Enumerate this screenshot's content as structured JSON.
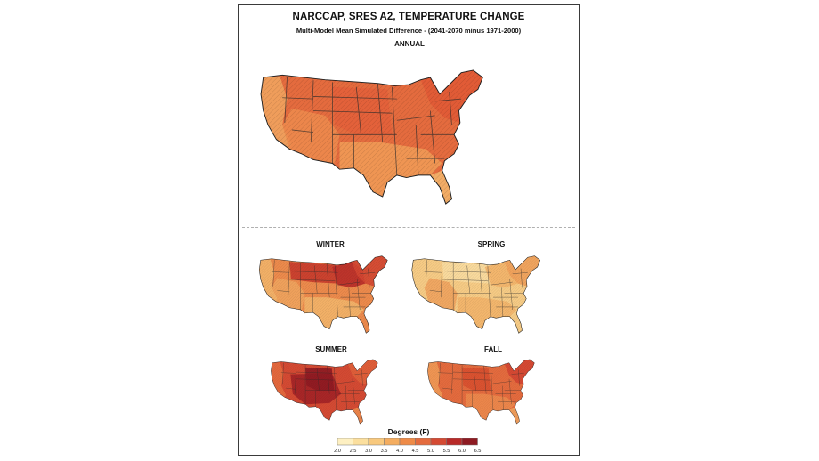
{
  "title": "NARCCAP, SRES A2, TEMPERATURE CHANGE",
  "subtitle": "Multi-Model Mean Simulated Difference - (2041-2070 minus 1971-2000)",
  "panels": [
    {
      "id": "annual",
      "label": "ANNUAL",
      "base": "#e46b3e",
      "regions": [
        {
          "region": "west-coast",
          "color": "#f0a35e"
        },
        {
          "region": "southwest",
          "color": "#ec8a4c"
        },
        {
          "region": "south",
          "color": "#ef9a55"
        },
        {
          "region": "northeast",
          "color": "#e05a35"
        },
        {
          "region": "great-plains",
          "color": "#e2603a"
        },
        {
          "region": "florida",
          "color": "#f3b46a"
        }
      ]
    },
    {
      "id": "winter",
      "label": "WINTER",
      "base": "#ec8a4c",
      "regions": [
        {
          "region": "northern-plains",
          "color": "#c83a2c"
        },
        {
          "region": "great-lakes",
          "color": "#b82a28"
        },
        {
          "region": "northeast",
          "color": "#d34632"
        },
        {
          "region": "southwest",
          "color": "#f0a35e"
        },
        {
          "region": "south",
          "color": "#f3b46a"
        },
        {
          "region": "west-coast",
          "color": "#f3b46a"
        }
      ]
    },
    {
      "id": "spring",
      "label": "SPRING",
      "base": "#f6cb85",
      "regions": [
        {
          "region": "southwest",
          "color": "#f0a35e"
        },
        {
          "region": "south",
          "color": "#f3b46a"
        },
        {
          "region": "northern-plains",
          "color": "#f9dca0"
        },
        {
          "region": "great-lakes",
          "color": "#f3b46a"
        },
        {
          "region": "northeast",
          "color": "#efa05a"
        }
      ]
    },
    {
      "id": "summer",
      "label": "SUMMER",
      "base": "#d44a33",
      "regions": [
        {
          "region": "central",
          "color": "#a32226"
        },
        {
          "region": "great-plains",
          "color": "#8e1b22"
        },
        {
          "region": "west-coast",
          "color": "#e46b3e"
        },
        {
          "region": "northeast",
          "color": "#e0603a"
        },
        {
          "region": "florida",
          "color": "#ec8a4c"
        }
      ]
    },
    {
      "id": "fall",
      "label": "FALL",
      "base": "#e46b3e",
      "regions": [
        {
          "region": "west-coast",
          "color": "#ef9a55"
        },
        {
          "region": "south",
          "color": "#ec8a4c"
        },
        {
          "region": "great-plains",
          "color": "#d8502f"
        },
        {
          "region": "northeast",
          "color": "#d34632"
        },
        {
          "region": "florida",
          "color": "#f0a35e"
        }
      ]
    }
  ],
  "legend": {
    "title": "Degrees (F)",
    "ticks": [
      "2.0",
      "2.5",
      "3.0",
      "3.5",
      "4.0",
      "4.5",
      "5.0",
      "5.5",
      "6.0",
      "6.5"
    ],
    "colors": [
      "#fef0c2",
      "#fbdf9e",
      "#f8c97e",
      "#f4ad60",
      "#ee8b48",
      "#e46b3e",
      "#d44a33",
      "#b82a28",
      "#8e1b22"
    ]
  }
}
